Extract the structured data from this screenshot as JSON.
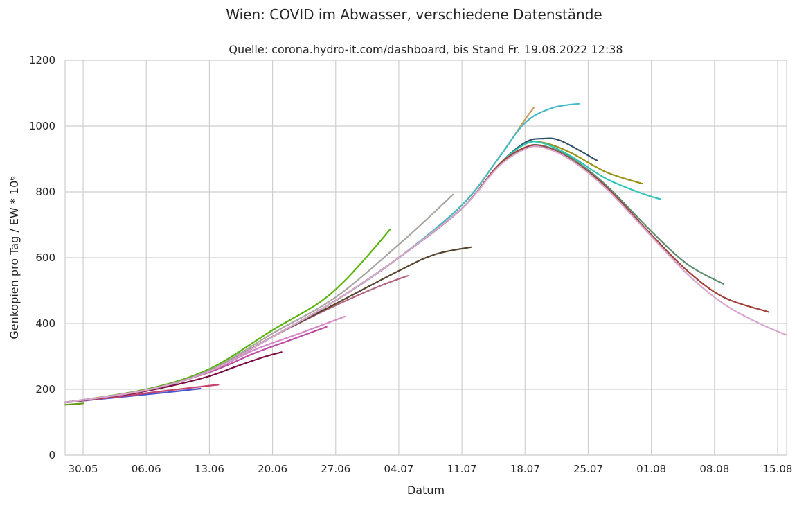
{
  "chart_data": {
    "type": "line",
    "suptitle": "Wien: COVID im Abwasser, verschiedene Datenstände",
    "title": "Quelle: corona.hydro-it.com/dashboard, bis Stand Fr. 19.08.2022 12:38",
    "xlabel": "Datum",
    "ylabel": "Genkopien pro Tag / EW * 10⁶",
    "x_is_date": true,
    "xlim": [
      "2022-05-28",
      "2022-08-16"
    ],
    "ylim": [
      0,
      1200
    ],
    "x_ticks": [
      {
        "date": "2022-05-30",
        "label": "30.05"
      },
      {
        "date": "2022-06-06",
        "label": "06.06"
      },
      {
        "date": "2022-06-13",
        "label": "13.06"
      },
      {
        "date": "2022-06-20",
        "label": "20.06"
      },
      {
        "date": "2022-06-27",
        "label": "27.06"
      },
      {
        "date": "2022-07-04",
        "label": "04.07"
      },
      {
        "date": "2022-07-11",
        "label": "11.07"
      },
      {
        "date": "2022-07-18",
        "label": "18.07"
      },
      {
        "date": "2022-07-25",
        "label": "25.07"
      },
      {
        "date": "2022-08-01",
        "label": "01.08"
      },
      {
        "date": "2022-08-08",
        "label": "08.08"
      },
      {
        "date": "2022-08-15",
        "label": "15.08"
      }
    ],
    "y_ticks": [
      0,
      200,
      400,
      600,
      800,
      1000,
      1200
    ],
    "grid": true,
    "legend": "none",
    "series": [
      {
        "color": "#6b9a1d",
        "points": [
          [
            "2022-05-28",
            153
          ],
          [
            "2022-05-30",
            157
          ]
        ]
      },
      {
        "color": "#4a55cf",
        "points": [
          [
            "2022-05-28",
            160
          ],
          [
            "2022-06-03",
            176
          ],
          [
            "2022-06-08",
            190
          ],
          [
            "2022-06-12",
            202
          ]
        ]
      },
      {
        "color": "#c8436c",
        "points": [
          [
            "2022-05-28",
            160
          ],
          [
            "2022-06-03",
            178
          ],
          [
            "2022-06-08",
            195
          ],
          [
            "2022-06-12",
            208
          ],
          [
            "2022-06-14",
            214
          ]
        ]
      },
      {
        "color": "#7a0a40",
        "points": [
          [
            "2022-05-28",
            160
          ],
          [
            "2022-06-04",
            185
          ],
          [
            "2022-06-09",
            212
          ],
          [
            "2022-06-13",
            240
          ],
          [
            "2022-06-16",
            270
          ],
          [
            "2022-06-19",
            298
          ],
          [
            "2022-06-21",
            313
          ]
        ]
      },
      {
        "color": "#bc4fa4",
        "points": [
          [
            "2022-05-28",
            160
          ],
          [
            "2022-06-06",
            197
          ],
          [
            "2022-06-13",
            252
          ],
          [
            "2022-06-18",
            310
          ],
          [
            "2022-06-22",
            350
          ],
          [
            "2022-06-26",
            390
          ]
        ]
      },
      {
        "color": "#d48ac6",
        "points": [
          [
            "2022-05-28",
            160
          ],
          [
            "2022-06-06",
            197
          ],
          [
            "2022-06-13",
            255
          ],
          [
            "2022-06-18",
            320
          ],
          [
            "2022-06-23",
            370
          ],
          [
            "2022-06-28",
            421
          ]
        ]
      },
      {
        "color": "#58b40a",
        "points": [
          [
            "2022-05-28",
            160
          ],
          [
            "2022-06-06",
            200
          ],
          [
            "2022-06-13",
            262
          ],
          [
            "2022-06-20",
            380
          ],
          [
            "2022-06-25",
            460
          ],
          [
            "2022-06-28",
            530
          ],
          [
            "2022-07-01",
            620
          ],
          [
            "2022-07-03",
            685
          ]
        ]
      },
      {
        "color": "#a9a6a1",
        "points": [
          [
            "2022-05-28",
            160
          ],
          [
            "2022-06-06",
            198
          ],
          [
            "2022-06-13",
            258
          ],
          [
            "2022-06-20",
            370
          ],
          [
            "2022-06-27",
            480
          ],
          [
            "2022-07-04",
            640
          ],
          [
            "2022-07-08",
            740
          ],
          [
            "2022-07-10",
            792
          ]
        ]
      },
      {
        "color": "#b0637e",
        "points": [
          [
            "2022-05-28",
            160
          ],
          [
            "2022-06-06",
            198
          ],
          [
            "2022-06-13",
            255
          ],
          [
            "2022-06-20",
            360
          ],
          [
            "2022-06-27",
            455
          ],
          [
            "2022-07-02",
            515
          ],
          [
            "2022-07-05",
            545
          ]
        ]
      },
      {
        "color": "#55442d",
        "points": [
          [
            "2022-05-28",
            160
          ],
          [
            "2022-06-06",
            198
          ],
          [
            "2022-06-13",
            255
          ],
          [
            "2022-06-20",
            360
          ],
          [
            "2022-06-27",
            460
          ],
          [
            "2022-07-04",
            560
          ],
          [
            "2022-07-08",
            610
          ],
          [
            "2022-07-12",
            632
          ]
        ]
      },
      {
        "color": "#d19a5a",
        "points": [
          [
            "2022-05-28",
            160
          ],
          [
            "2022-06-06",
            198
          ],
          [
            "2022-06-13",
            255
          ],
          [
            "2022-06-20",
            360
          ],
          [
            "2022-06-27",
            470
          ],
          [
            "2022-07-04",
            600
          ],
          [
            "2022-07-11",
            760
          ],
          [
            "2022-07-15",
            900
          ],
          [
            "2022-07-18",
            1020
          ],
          [
            "2022-07-19",
            1057
          ]
        ]
      },
      {
        "color": "#46b9c6",
        "points": [
          [
            "2022-05-28",
            160
          ],
          [
            "2022-06-06",
            198
          ],
          [
            "2022-06-13",
            255
          ],
          [
            "2022-06-20",
            360
          ],
          [
            "2022-06-27",
            470
          ],
          [
            "2022-07-04",
            600
          ],
          [
            "2022-07-11",
            760
          ],
          [
            "2022-07-15",
            900
          ],
          [
            "2022-07-18",
            1010
          ],
          [
            "2022-07-21",
            1055
          ],
          [
            "2022-07-24",
            1068
          ]
        ]
      },
      {
        "color": "#2f4f65",
        "points": [
          [
            "2022-05-28",
            160
          ],
          [
            "2022-06-06",
            198
          ],
          [
            "2022-06-13",
            255
          ],
          [
            "2022-06-20",
            360
          ],
          [
            "2022-06-27",
            470
          ],
          [
            "2022-07-04",
            600
          ],
          [
            "2022-07-11",
            750
          ],
          [
            "2022-07-15",
            880
          ],
          [
            "2022-07-18",
            950
          ],
          [
            "2022-07-20",
            962
          ],
          [
            "2022-07-22",
            955
          ],
          [
            "2022-07-26",
            895
          ]
        ]
      },
      {
        "color": "#979114",
        "points": [
          [
            "2022-05-28",
            160
          ],
          [
            "2022-06-06",
            198
          ],
          [
            "2022-06-13",
            255
          ],
          [
            "2022-06-20",
            360
          ],
          [
            "2022-06-27",
            470
          ],
          [
            "2022-07-04",
            600
          ],
          [
            "2022-07-11",
            750
          ],
          [
            "2022-07-15",
            880
          ],
          [
            "2022-07-18",
            945
          ],
          [
            "2022-07-20",
            950
          ],
          [
            "2022-07-23",
            920
          ],
          [
            "2022-07-27",
            860
          ],
          [
            "2022-07-31",
            825
          ]
        ]
      },
      {
        "color": "#2ec5b7",
        "points": [
          [
            "2022-05-28",
            160
          ],
          [
            "2022-06-06",
            198
          ],
          [
            "2022-06-13",
            255
          ],
          [
            "2022-06-20",
            360
          ],
          [
            "2022-06-27",
            470
          ],
          [
            "2022-07-04",
            600
          ],
          [
            "2022-07-11",
            750
          ],
          [
            "2022-07-15",
            880
          ],
          [
            "2022-07-18",
            945
          ],
          [
            "2022-07-20",
            948
          ],
          [
            "2022-07-23",
            910
          ],
          [
            "2022-07-27",
            840
          ],
          [
            "2022-07-31",
            795
          ],
          [
            "2022-08-02",
            778
          ]
        ]
      },
      {
        "color": "#5d8c6e",
        "points": [
          [
            "2022-05-28",
            160
          ],
          [
            "2022-06-06",
            198
          ],
          [
            "2022-06-13",
            255
          ],
          [
            "2022-06-20",
            360
          ],
          [
            "2022-06-27",
            470
          ],
          [
            "2022-07-04",
            600
          ],
          [
            "2022-07-11",
            750
          ],
          [
            "2022-07-15",
            880
          ],
          [
            "2022-07-18",
            935
          ],
          [
            "2022-07-20",
            940
          ],
          [
            "2022-07-23",
            905
          ],
          [
            "2022-07-27",
            820
          ],
          [
            "2022-08-01",
            680
          ],
          [
            "2022-08-05",
            580
          ],
          [
            "2022-08-09",
            520
          ]
        ]
      },
      {
        "color": "#a0413a",
        "points": [
          [
            "2022-05-28",
            160
          ],
          [
            "2022-06-06",
            198
          ],
          [
            "2022-06-13",
            255
          ],
          [
            "2022-06-20",
            360
          ],
          [
            "2022-06-27",
            470
          ],
          [
            "2022-07-04",
            600
          ],
          [
            "2022-07-11",
            750
          ],
          [
            "2022-07-15",
            880
          ],
          [
            "2022-07-18",
            935
          ],
          [
            "2022-07-20",
            938
          ],
          [
            "2022-07-23",
            900
          ],
          [
            "2022-07-27",
            815
          ],
          [
            "2022-08-01",
            670
          ],
          [
            "2022-08-05",
            560
          ],
          [
            "2022-08-09",
            480
          ],
          [
            "2022-08-14",
            435
          ]
        ]
      },
      {
        "color": "#d9a6cf",
        "points": [
          [
            "2022-05-28",
            160
          ],
          [
            "2022-06-06",
            198
          ],
          [
            "2022-06-13",
            255
          ],
          [
            "2022-06-20",
            360
          ],
          [
            "2022-06-27",
            470
          ],
          [
            "2022-07-04",
            600
          ],
          [
            "2022-07-11",
            750
          ],
          [
            "2022-07-15",
            875
          ],
          [
            "2022-07-18",
            930
          ],
          [
            "2022-07-20",
            935
          ],
          [
            "2022-07-23",
            898
          ],
          [
            "2022-07-27",
            810
          ],
          [
            "2022-08-01",
            665
          ],
          [
            "2022-08-05",
            550
          ],
          [
            "2022-08-09",
            460
          ],
          [
            "2022-08-13",
            400
          ],
          [
            "2022-08-16",
            365
          ]
        ]
      }
    ]
  }
}
